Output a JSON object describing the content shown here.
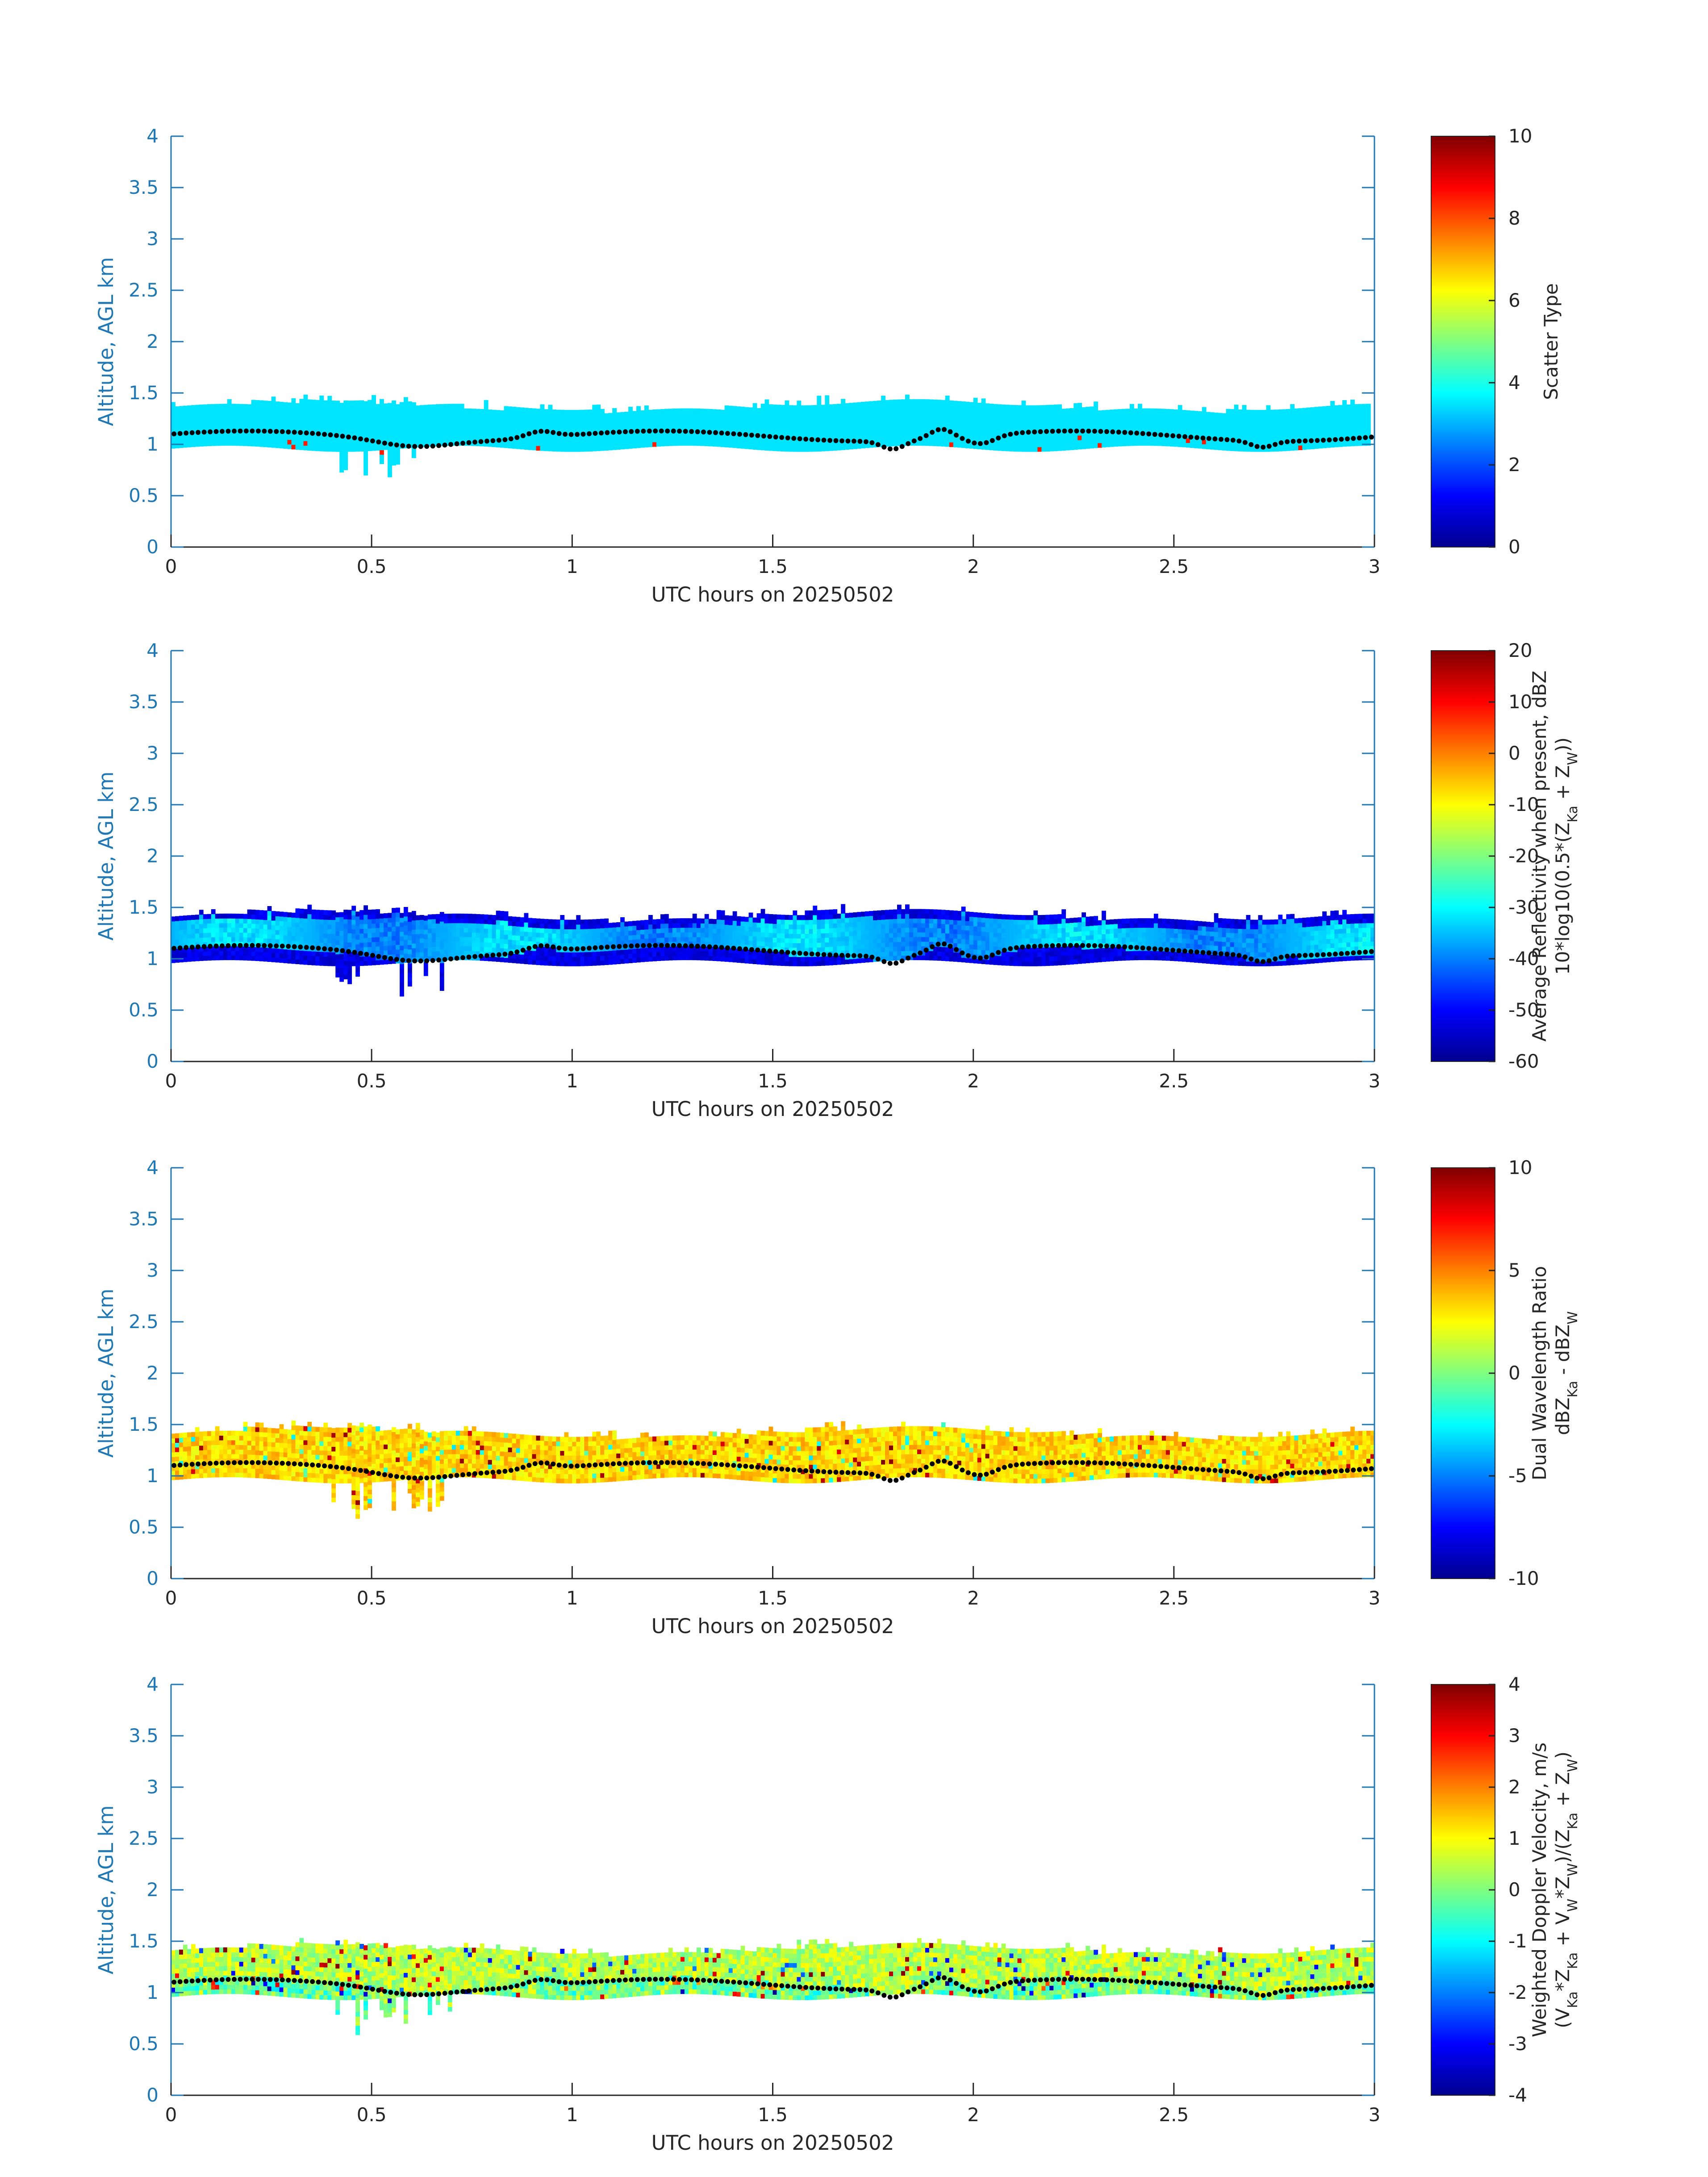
{
  "chart_data": [
    {
      "type": "heatmap",
      "xlabel": "UTC hours on 20250502",
      "ylabel": "Altitude, AGL km",
      "xlim": [
        0,
        3
      ],
      "ylim": [
        0,
        4
      ],
      "xticks": [
        "0",
        "0.5",
        "1",
        "1.5",
        "2",
        "2.5",
        "3"
      ],
      "yticks": [
        "0",
        "0.5",
        "1",
        "1.5",
        "2",
        "2.5",
        "3",
        "3.5",
        "4"
      ],
      "colorbar": {
        "label_lines": [
          "Scatter Type"
        ],
        "range": [
          0,
          10
        ],
        "ticks": [
          "0",
          "2",
          "4",
          "6",
          "8",
          "10"
        ]
      },
      "layer": {
        "base_km": 1.0,
        "top_km": 1.35,
        "dominant_value": 3.5
      },
      "overlay": "black dots: cloud base height (km)"
    },
    {
      "type": "heatmap",
      "xlabel": "UTC hours on 20250502",
      "ylabel": "Altitude, AGL km",
      "xlim": [
        0,
        3
      ],
      "ylim": [
        0,
        4
      ],
      "xticks": [
        "0",
        "0.5",
        "1",
        "1.5",
        "2",
        "2.5",
        "3"
      ],
      "yticks": [
        "0",
        "0.5",
        "1",
        "1.5",
        "2",
        "2.5",
        "3",
        "3.5",
        "4"
      ],
      "colorbar": {
        "label_lines": [
          "Average Reflectivity when present, dBZ",
          "10*log10(0.5*(Z_Ka + Z_W))"
        ],
        "range": [
          -60,
          20
        ],
        "ticks": [
          "-60",
          "-50",
          "-40",
          "-30",
          "-20",
          "-10",
          "0",
          "10",
          "20"
        ]
      },
      "layer": {
        "base_km": 1.0,
        "top_km": 1.4,
        "dominant_value": -35
      }
    },
    {
      "type": "heatmap",
      "xlabel": "UTC hours on 20250502",
      "ylabel": "Altitude, AGL km",
      "xlim": [
        0,
        3
      ],
      "ylim": [
        0,
        4
      ],
      "xticks": [
        "0",
        "0.5",
        "1",
        "1.5",
        "2",
        "2.5",
        "3"
      ],
      "yticks": [
        "0",
        "0.5",
        "1",
        "1.5",
        "2",
        "2.5",
        "3",
        "3.5",
        "4"
      ],
      "colorbar": {
        "label_lines": [
          "Dual Wavelength Ratio",
          "dBZ_Ka - dBZ_W"
        ],
        "range": [
          -10,
          10
        ],
        "ticks": [
          "-10",
          "-5",
          "0",
          "5",
          "10"
        ]
      },
      "layer": {
        "base_km": 1.0,
        "top_km": 1.4,
        "dominant_value": 2.5
      }
    },
    {
      "type": "heatmap",
      "xlabel": "UTC hours on 20250502",
      "ylabel": "Altitude, AGL km",
      "xlim": [
        0,
        3
      ],
      "ylim": [
        0,
        4
      ],
      "xticks": [
        "0",
        "0.5",
        "1",
        "1.5",
        "2",
        "2.5",
        "3"
      ],
      "yticks": [
        "0",
        "0.5",
        "1",
        "1.5",
        "2",
        "2.5",
        "3",
        "3.5",
        "4"
      ],
      "colorbar": {
        "label_lines": [
          "Weighted Doppler Velocity, m/s",
          "(V_Ka*Z_Ka + V_W*Z_W)/(Z_Ka + Z_W)"
        ],
        "range": [
          -4,
          4
        ],
        "ticks": [
          "-4",
          "-3",
          "-2",
          "-1",
          "0",
          "1",
          "2",
          "3",
          "4"
        ]
      },
      "layer": {
        "base_km": 1.0,
        "top_km": 1.4,
        "dominant_value": 0.3
      }
    }
  ]
}
